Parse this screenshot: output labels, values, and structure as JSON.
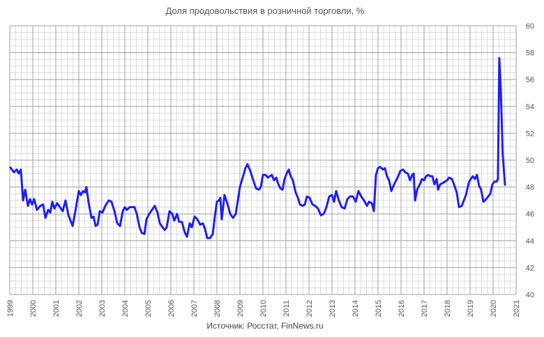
{
  "chart_data": {
    "type": "line",
    "title": "Доля продовольствия в розничной торговли, %",
    "source": "Источник: Росстат, FinNews.ru",
    "xlim": [
      1999,
      2021
    ],
    "xticks": [
      1999,
      2000,
      2001,
      2002,
      2003,
      2004,
      2005,
      2006,
      2007,
      2008,
      2009,
      2010,
      2011,
      2012,
      2013,
      2014,
      2015,
      2016,
      2017,
      2018,
      2019,
      2020,
      2021
    ],
    "ylim": [
      40,
      60
    ],
    "yticks": [
      40,
      42,
      44,
      46,
      48,
      50,
      52,
      54,
      56,
      58,
      60
    ],
    "grid": true,
    "x": [
      1999.0,
      1999.18,
      1999.3,
      1999.39,
      1999.48,
      1999.58,
      1999.67,
      1999.79,
      1999.88,
      1999.97,
      2000.06,
      2000.18,
      2000.33,
      2000.45,
      2000.55,
      2000.67,
      2000.76,
      2000.85,
      2000.94,
      2001.06,
      2001.18,
      2001.3,
      2001.42,
      2001.55,
      2001.73,
      2001.85,
      2002.0,
      2002.09,
      2002.18,
      2002.27,
      2002.33,
      2002.42,
      2002.55,
      2002.64,
      2002.73,
      2002.82,
      2002.91,
      2003.03,
      2003.15,
      2003.3,
      2003.42,
      2003.55,
      2003.67,
      2003.79,
      2003.91,
      2004.0,
      2004.09,
      2004.21,
      2004.42,
      2004.52,
      2004.64,
      2004.73,
      2004.85,
      2004.94,
      2005.06,
      2005.18,
      2005.3,
      2005.42,
      2005.52,
      2005.64,
      2005.73,
      2005.82,
      2005.94,
      2006.06,
      2006.15,
      2006.27,
      2006.36,
      2006.48,
      2006.61,
      2006.7,
      2006.82,
      2006.91,
      2007.03,
      2007.15,
      2007.27,
      2007.39,
      2007.48,
      2007.58,
      2007.7,
      2007.82,
      2007.91,
      2008.0,
      2008.09,
      2008.15,
      2008.21,
      2008.33,
      2008.45,
      2008.58,
      2008.7,
      2008.82,
      2008.91,
      2009.0,
      2009.12,
      2009.24,
      2009.33,
      2009.45,
      2009.58,
      2009.7,
      2009.82,
      2009.91,
      2010.0,
      2010.12,
      2010.21,
      2010.3,
      2010.39,
      2010.48,
      2010.58,
      2010.67,
      2010.76,
      2010.85,
      2010.94,
      2011.03,
      2011.12,
      2011.21,
      2011.3,
      2011.42,
      2011.52,
      2011.61,
      2011.73,
      2011.82,
      2011.91,
      2012.03,
      2012.15,
      2012.27,
      2012.39,
      2012.52,
      2012.64,
      2012.76,
      2012.88,
      2013.0,
      2013.09,
      2013.18,
      2013.3,
      2013.42,
      2013.55,
      2013.67,
      2013.79,
      2013.91,
      2014.03,
      2014.15,
      2014.27,
      2014.39,
      2014.52,
      2014.61,
      2014.73,
      2014.82,
      2014.91,
      2015.0,
      2015.09,
      2015.21,
      2015.3,
      2015.39,
      2015.48,
      2015.58,
      2015.67,
      2015.76,
      2015.85,
      2015.97,
      2016.09,
      2016.18,
      2016.3,
      2016.39,
      2016.48,
      2016.55,
      2016.61,
      2016.7,
      2016.82,
      2016.91,
      2017.0,
      2017.09,
      2017.18,
      2017.27,
      2017.36,
      2017.45,
      2017.55,
      2017.61,
      2017.7,
      2017.82,
      2017.91,
      2018.0,
      2018.09,
      2018.21,
      2018.3,
      2018.42,
      2018.52,
      2018.64,
      2018.73,
      2018.82,
      2018.94,
      2019.03,
      2019.12,
      2019.21,
      2019.3,
      2019.39,
      2019.48,
      2019.58,
      2019.7,
      2019.79,
      2019.88,
      2019.97,
      2020.06,
      2020.15,
      2020.21,
      2020.27,
      2020.33,
      2020.42,
      2020.52
    ],
    "series": [
      {
        "name": "Доля продовольствия",
        "color": "#1f1fef",
        "values": [
          49.5,
          49.1,
          49.3,
          49.0,
          49.3,
          47.0,
          47.8,
          46.6,
          47.1,
          46.7,
          47.1,
          46.3,
          46.6,
          46.7,
          45.7,
          46.3,
          46.1,
          46.9,
          46.4,
          46.8,
          46.5,
          46.2,
          47.0,
          45.9,
          45.1,
          46.2,
          47.7,
          47.4,
          47.7,
          47.6,
          48.0,
          46.9,
          45.7,
          45.8,
          45.1,
          45.2,
          46.2,
          46.1,
          46.6,
          47.0,
          46.9,
          46.2,
          45.3,
          45.1,
          46.2,
          46.5,
          46.3,
          46.5,
          46.5,
          46.0,
          45.0,
          44.6,
          44.5,
          45.6,
          46.0,
          46.3,
          46.6,
          46.1,
          45.3,
          45.0,
          44.8,
          45.0,
          46.2,
          46.0,
          45.5,
          46.0,
          45.4,
          45.4,
          44.6,
          44.3,
          45.3,
          45.0,
          45.8,
          45.6,
          45.2,
          45.3,
          44.9,
          44.2,
          44.2,
          44.5,
          45.8,
          46.9,
          47.0,
          47.2,
          45.6,
          47.4,
          46.8,
          46.0,
          45.7,
          46.0,
          47.0,
          48.0,
          48.7,
          49.4,
          49.7,
          49.2,
          48.5,
          47.9,
          47.8,
          48.0,
          48.9,
          48.9,
          48.7,
          48.8,
          48.9,
          48.5,
          48.7,
          48.2,
          47.9,
          47.8,
          48.6,
          49.0,
          49.3,
          48.8,
          48.5,
          47.6,
          47.2,
          46.7,
          46.6,
          46.7,
          47.3,
          47.2,
          46.7,
          46.6,
          46.4,
          45.9,
          46.0,
          46.5,
          47.3,
          47.4,
          46.9,
          47.7,
          47.0,
          46.5,
          46.4,
          47.1,
          47.3,
          47.3,
          46.9,
          47.7,
          47.3,
          47.0,
          46.6,
          46.9,
          46.8,
          46.2,
          48.9,
          49.4,
          49.5,
          49.3,
          49.4,
          48.8,
          48.5,
          47.7,
          48.1,
          48.4,
          48.7,
          49.2,
          49.3,
          49.1,
          49.0,
          48.5,
          48.9,
          49.0,
          47.0,
          47.8,
          48.2,
          48.6,
          48.5,
          48.8,
          48.9,
          48.8,
          48.8,
          48.2,
          48.6,
          47.8,
          48.2,
          48.3,
          48.4,
          48.5,
          48.7,
          48.6,
          48.2,
          47.6,
          46.5,
          46.6,
          47.0,
          47.4,
          48.3,
          48.6,
          48.8,
          48.6,
          48.9,
          48.1,
          47.8,
          46.9,
          47.1,
          47.3,
          47.5,
          48.2,
          48.4,
          48.4,
          48.6,
          57.6,
          55.5,
          50.4,
          48.1
        ]
      }
    ]
  }
}
